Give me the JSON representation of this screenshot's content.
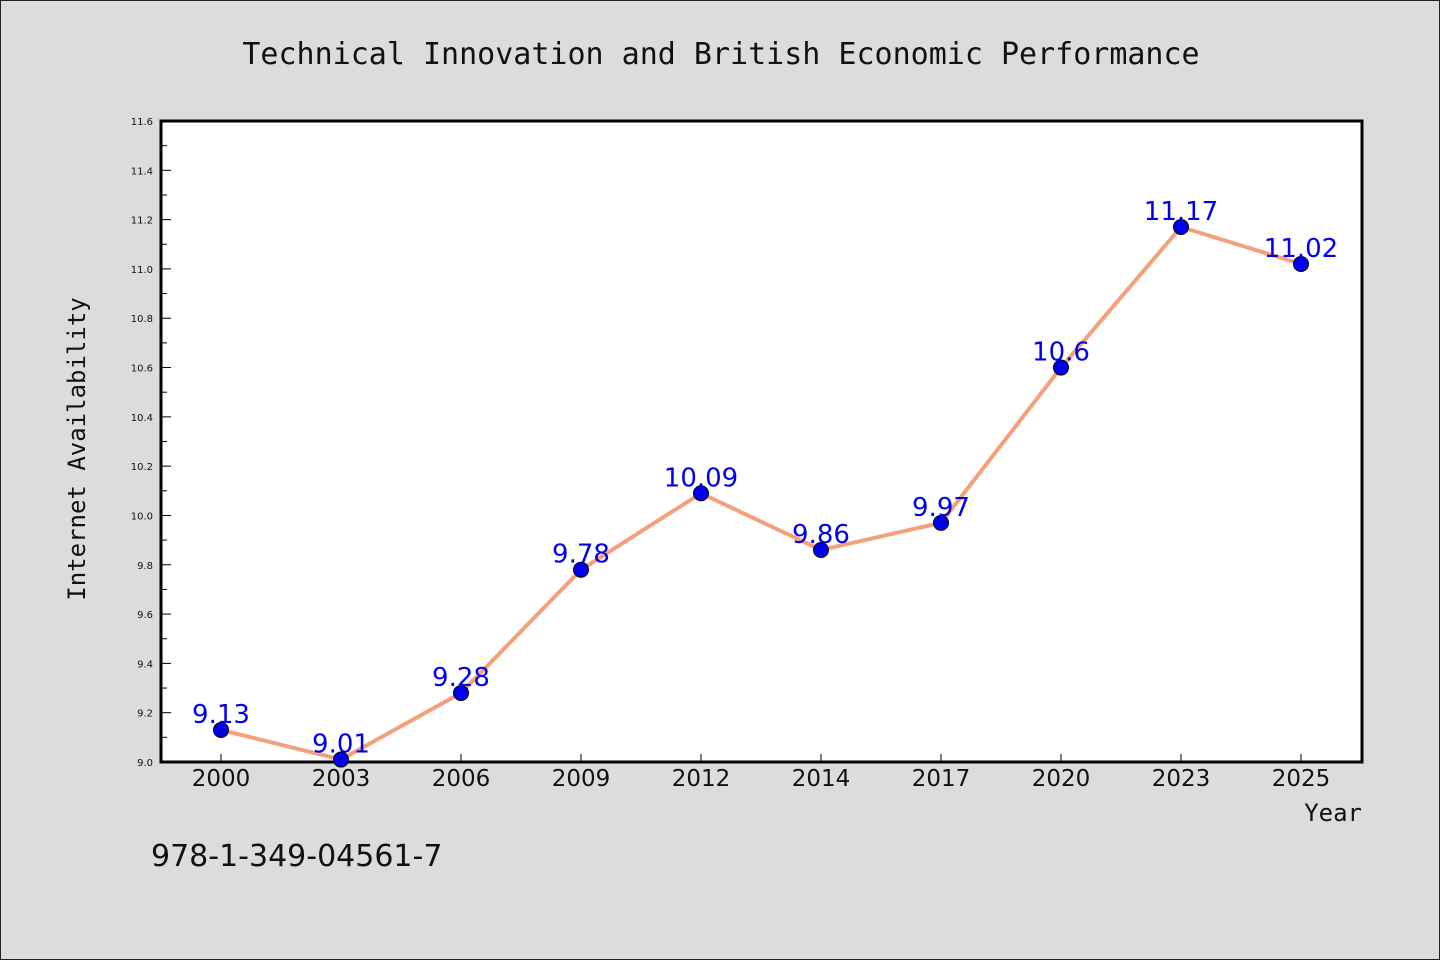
{
  "chart_data": {
    "type": "line",
    "title": "Technical Innovation and British Economic Performance",
    "xlabel": "Year",
    "ylabel": "Internet Availability",
    "categories": [
      "2000",
      "2003",
      "2006",
      "2009",
      "2012",
      "2014",
      "2017",
      "2020",
      "2023",
      "2025"
    ],
    "series": [
      {
        "values": [
          9.13,
          9.01,
          9.28,
          9.78,
          10.09,
          9.86,
          9.97,
          10.6,
          11.17,
          11.02
        ],
        "data_labels": [
          "9.13",
          "9.01",
          "9.28",
          "9.78",
          "10.09",
          "9.86",
          "9.97",
          "10.6",
          "11.17",
          "11.02"
        ],
        "line_color": "#f4a07a",
        "marker_color": "#0000ee",
        "label_color": "#0000ee"
      }
    ],
    "ylim": [
      9.0,
      11.6
    ],
    "yticks": [
      "9.0",
      "9.2",
      "9.4",
      "9.6",
      "9.8",
      "10.0",
      "10.2",
      "10.4",
      "10.6",
      "10.8",
      "11.0",
      "11.2",
      "11.4",
      "11.6"
    ],
    "grid": false,
    "legend": "none"
  },
  "footer": {
    "isbn": "978-1-349-04561-7"
  },
  "colors": {
    "background": "#dcdcdc",
    "plot_background": "#ffffff",
    "axis": "#000000"
  }
}
